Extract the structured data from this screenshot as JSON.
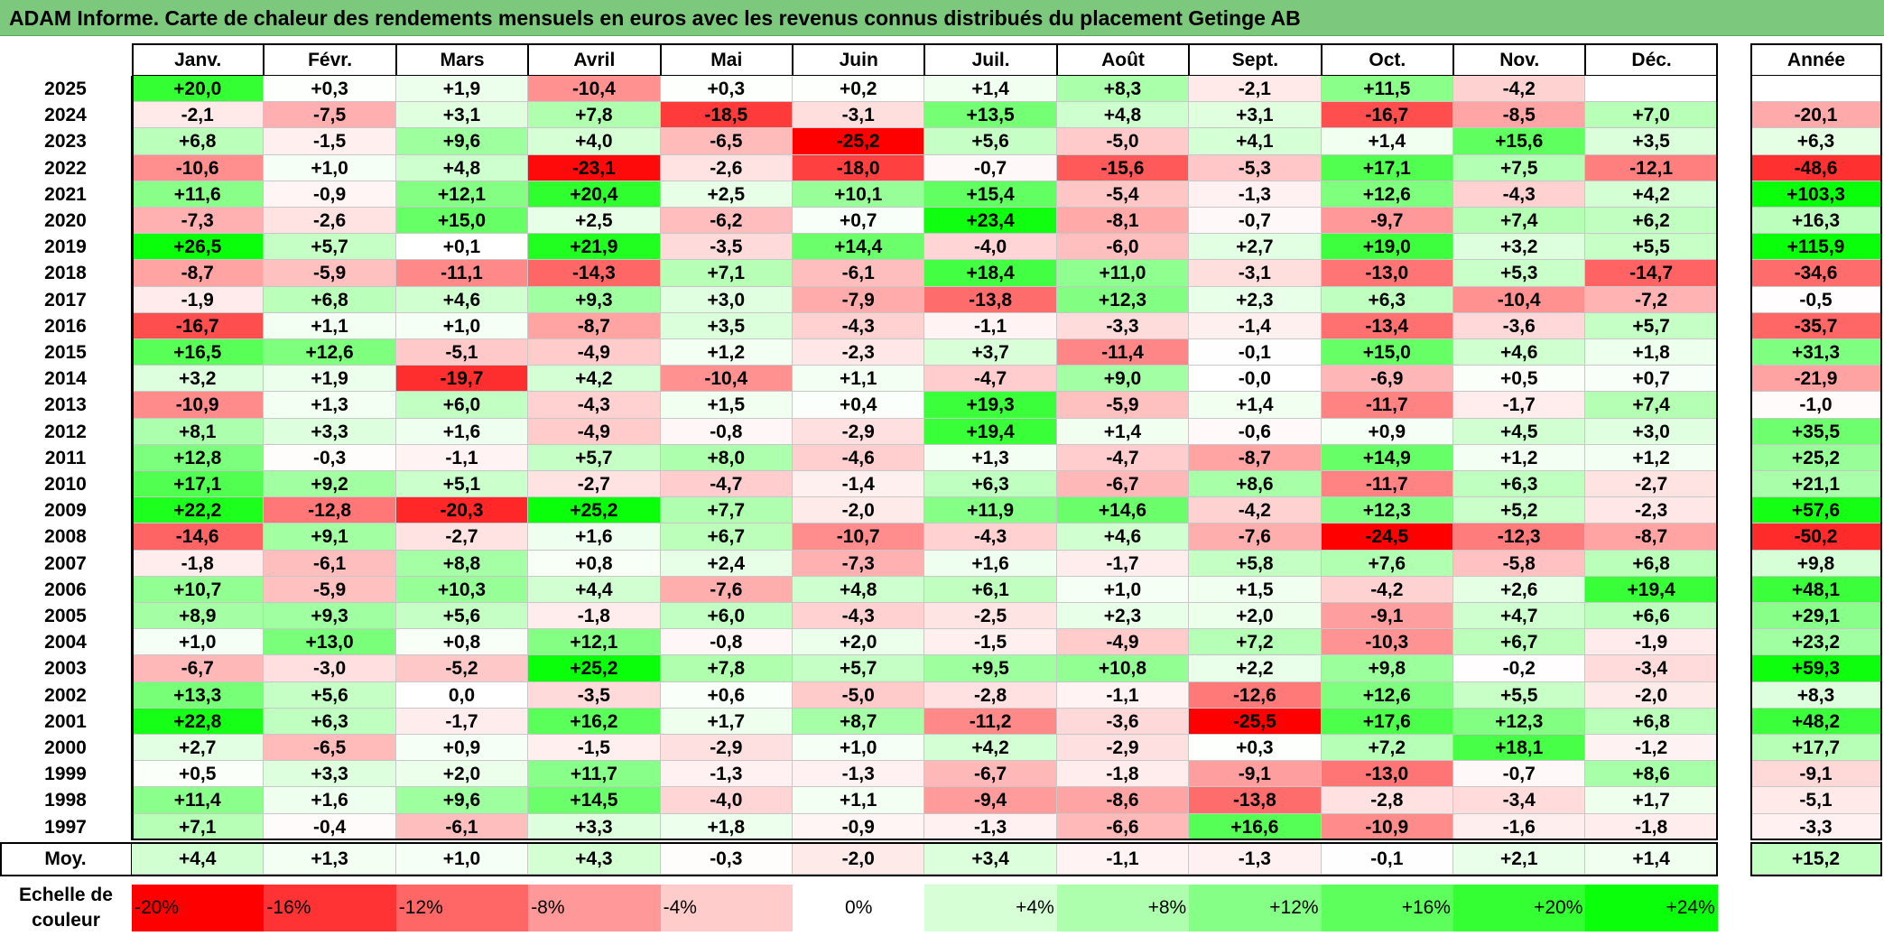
{
  "title": "ADAM Informe. Carte de chaleur des rendements mensuels en euros avec les revenus connus distribués du placement Getinge AB",
  "chart_data": {
    "type": "heatmap",
    "title": "ADAM Informe. Carte de chaleur des rendements mensuels en euros avec les revenus connus distribués du placement Getinge AB",
    "columns": [
      "Janv.",
      "Févr.",
      "Mars",
      "Avril",
      "Mai",
      "Juin",
      "Juil.",
      "Août",
      "Sept.",
      "Oct.",
      "Nov.",
      "Déc."
    ],
    "year_column_label": "Année",
    "rows": [
      {
        "year": "2025",
        "months": [
          "+20,0",
          "+0,3",
          "+1,9",
          "-10,4",
          "+0,3",
          "+0,2",
          "+1,4",
          "+8,3",
          "-2,1",
          "+11,5",
          "-4,2",
          ""
        ],
        "annual": ""
      },
      {
        "year": "2024",
        "months": [
          "-2,1",
          "-7,5",
          "+3,1",
          "+7,8",
          "-18,5",
          "-3,1",
          "+13,5",
          "+4,8",
          "+3,1",
          "-16,7",
          "-8,5",
          "+7,0"
        ],
        "annual": "-20,1"
      },
      {
        "year": "2023",
        "months": [
          "+6,8",
          "-1,5",
          "+9,6",
          "+4,0",
          "-6,5",
          "-25,2",
          "+5,6",
          "-5,0",
          "+4,1",
          "+1,4",
          "+15,6",
          "+3,5"
        ],
        "annual": "+6,3"
      },
      {
        "year": "2022",
        "months": [
          "-10,6",
          "+1,0",
          "+4,8",
          "-23,1",
          "-2,6",
          "-18,0",
          "-0,7",
          "-15,6",
          "-5,3",
          "+17,1",
          "+7,5",
          "-12,1"
        ],
        "annual": "-48,6"
      },
      {
        "year": "2021",
        "months": [
          "+11,6",
          "-0,9",
          "+12,1",
          "+20,4",
          "+2,5",
          "+10,1",
          "+15,4",
          "-5,4",
          "-1,3",
          "+12,6",
          "-4,3",
          "+4,2"
        ],
        "annual": "+103,3"
      },
      {
        "year": "2020",
        "months": [
          "-7,3",
          "-2,6",
          "+15,0",
          "+2,5",
          "-6,2",
          "+0,7",
          "+23,4",
          "-8,1",
          "-0,7",
          "-9,7",
          "+7,4",
          "+6,2"
        ],
        "annual": "+16,3"
      },
      {
        "year": "2019",
        "months": [
          "+26,5",
          "+5,7",
          "+0,1",
          "+21,9",
          "-3,5",
          "+14,4",
          "-4,0",
          "-6,0",
          "+2,7",
          "+19,0",
          "+3,2",
          "+5,5"
        ],
        "annual": "+115,9"
      },
      {
        "year": "2018",
        "months": [
          "-8,7",
          "-5,9",
          "-11,1",
          "-14,3",
          "+7,1",
          "-6,1",
          "+18,4",
          "+11,0",
          "-3,1",
          "-13,0",
          "+5,3",
          "-14,7"
        ],
        "annual": "-34,6"
      },
      {
        "year": "2017",
        "months": [
          "-1,9",
          "+6,8",
          "+4,6",
          "+9,3",
          "+3,0",
          "-7,9",
          "-13,8",
          "+12,3",
          "+2,3",
          "+6,3",
          "-10,4",
          "-7,2"
        ],
        "annual": "-0,5"
      },
      {
        "year": "2016",
        "months": [
          "-16,7",
          "+1,1",
          "+1,0",
          "-8,7",
          "+3,5",
          "-4,3",
          "-1,1",
          "-3,3",
          "-1,4",
          "-13,4",
          "-3,6",
          "+5,7"
        ],
        "annual": "-35,7"
      },
      {
        "year": "2015",
        "months": [
          "+16,5",
          "+12,6",
          "-5,1",
          "-4,9",
          "+1,2",
          "-2,3",
          "+3,7",
          "-11,4",
          "-0,1",
          "+15,0",
          "+4,6",
          "+1,8"
        ],
        "annual": "+31,3"
      },
      {
        "year": "2014",
        "months": [
          "+3,2",
          "+1,9",
          "-19,7",
          "+4,2",
          "-10,4",
          "+1,1",
          "-4,7",
          "+9,0",
          "-0,0",
          "-6,9",
          "+0,5",
          "+0,7"
        ],
        "annual": "-21,9"
      },
      {
        "year": "2013",
        "months": [
          "-10,9",
          "+1,3",
          "+6,0",
          "-4,3",
          "+1,5",
          "+0,4",
          "+19,3",
          "-5,9",
          "+1,4",
          "-11,7",
          "-1,7",
          "+7,4"
        ],
        "annual": "-1,0"
      },
      {
        "year": "2012",
        "months": [
          "+8,1",
          "+3,3",
          "+1,6",
          "-4,9",
          "-0,8",
          "-2,9",
          "+19,4",
          "+1,4",
          "-0,6",
          "+0,9",
          "+4,5",
          "+3,0"
        ],
        "annual": "+35,5"
      },
      {
        "year": "2011",
        "months": [
          "+12,8",
          "-0,3",
          "-1,1",
          "+5,7",
          "+8,0",
          "-4,6",
          "+1,3",
          "-4,7",
          "-8,7",
          "+14,9",
          "+1,2",
          "+1,2"
        ],
        "annual": "+25,2"
      },
      {
        "year": "2010",
        "months": [
          "+17,1",
          "+9,2",
          "+5,1",
          "-2,7",
          "-4,7",
          "-1,4",
          "+6,3",
          "-6,7",
          "+8,6",
          "-11,7",
          "+6,3",
          "-2,7"
        ],
        "annual": "+21,1"
      },
      {
        "year": "2009",
        "months": [
          "+22,2",
          "-12,8",
          "-20,3",
          "+25,2",
          "+7,7",
          "-2,0",
          "+11,9",
          "+14,6",
          "-4,2",
          "+12,3",
          "+5,2",
          "-2,3"
        ],
        "annual": "+57,6"
      },
      {
        "year": "2008",
        "months": [
          "-14,6",
          "+9,1",
          "-2,7",
          "+1,6",
          "+6,7",
          "-10,7",
          "-4,3",
          "+4,6",
          "-7,6",
          "-24,5",
          "-12,3",
          "-8,7"
        ],
        "annual": "-50,2"
      },
      {
        "year": "2007",
        "months": [
          "-1,8",
          "-6,1",
          "+8,8",
          "+0,8",
          "+2,4",
          "-7,3",
          "+1,6",
          "-1,7",
          "+5,8",
          "+7,6",
          "-5,8",
          "+6,8"
        ],
        "annual": "+9,8"
      },
      {
        "year": "2006",
        "months": [
          "+10,7",
          "-5,9",
          "+10,3",
          "+4,4",
          "-7,6",
          "+4,8",
          "+6,1",
          "+1,0",
          "+1,5",
          "-4,2",
          "+2,6",
          "+19,4"
        ],
        "annual": "+48,1"
      },
      {
        "year": "2005",
        "months": [
          "+8,9",
          "+9,3",
          "+5,6",
          "-1,8",
          "+6,0",
          "-4,3",
          "-2,5",
          "+2,3",
          "+2,0",
          "-9,1",
          "+4,7",
          "+6,6"
        ],
        "annual": "+29,1"
      },
      {
        "year": "2004",
        "months": [
          "+1,0",
          "+13,0",
          "+0,8",
          "+12,1",
          "-0,8",
          "+2,0",
          "-1,5",
          "-4,9",
          "+7,2",
          "-10,3",
          "+6,7",
          "-1,9"
        ],
        "annual": "+23,2"
      },
      {
        "year": "2003",
        "months": [
          "-6,7",
          "-3,0",
          "-5,2",
          "+25,2",
          "+7,8",
          "+5,7",
          "+9,5",
          "+10,8",
          "+2,2",
          "+9,8",
          "-0,2",
          "-3,4"
        ],
        "annual": "+59,3"
      },
      {
        "year": "2002",
        "months": [
          "+13,3",
          "+5,6",
          "0,0",
          "-3,5",
          "+0,6",
          "-5,0",
          "-2,8",
          "-1,1",
          "-12,6",
          "+12,6",
          "+5,5",
          "-2,0"
        ],
        "annual": "+8,3"
      },
      {
        "year": "2001",
        "months": [
          "+22,8",
          "+6,3",
          "-1,7",
          "+16,2",
          "+1,7",
          "+8,7",
          "-11,2",
          "-3,6",
          "-25,5",
          "+17,6",
          "+12,3",
          "+6,8"
        ],
        "annual": "+48,2"
      },
      {
        "year": "2000",
        "months": [
          "+2,7",
          "-6,5",
          "+0,9",
          "-1,5",
          "-2,9",
          "+1,0",
          "+4,2",
          "-2,9",
          "+0,3",
          "+7,2",
          "+18,1",
          "-1,2"
        ],
        "annual": "+17,7"
      },
      {
        "year": "1999",
        "months": [
          "+0,5",
          "+3,3",
          "+2,0",
          "+11,7",
          "-1,3",
          "-1,3",
          "-6,7",
          "-1,8",
          "-9,1",
          "-13,0",
          "-0,7",
          "+8,6"
        ],
        "annual": "-9,1"
      },
      {
        "year": "1998",
        "months": [
          "+11,4",
          "+1,6",
          "+9,6",
          "+14,5",
          "-4,0",
          "+1,1",
          "-9,4",
          "-8,6",
          "-13,8",
          "-2,8",
          "-3,4",
          "+1,7"
        ],
        "annual": "-5,1"
      },
      {
        "year": "1997",
        "months": [
          "+7,1",
          "-0,4",
          "-6,1",
          "+3,3",
          "+1,8",
          "-0,9",
          "-1,3",
          "-6,6",
          "+16,6",
          "-10,9",
          "-1,6",
          "-1,8"
        ],
        "annual": "-3,3"
      }
    ],
    "average": {
      "label": "Moy.",
      "months": [
        "+4,4",
        "+1,3",
        "+1,0",
        "+4,3",
        "-0,3",
        "-2,0",
        "+3,4",
        "-1,1",
        "-1,3",
        "-0,1",
        "+2,1",
        "+1,4"
      ],
      "annual": "+15,2"
    },
    "scale": {
      "label": "Echelle de couleur",
      "items": [
        {
          "text": "-20%",
          "color": "#ff0000"
        },
        {
          "text": "-16%",
          "color": "#ff3333"
        },
        {
          "text": "-12%",
          "color": "#ff6666"
        },
        {
          "text": "-8%",
          "color": "#ff9999"
        },
        {
          "text": "-4%",
          "color": "#ffcccc"
        },
        {
          "text": "0%",
          "color": "#ffffff"
        },
        {
          "text": "+4%",
          "color": "#d6ffd6"
        },
        {
          "text": "+8%",
          "color": "#adffad"
        },
        {
          "text": "+12%",
          "color": "#85ff85"
        },
        {
          "text": "+16%",
          "color": "#5cff5c"
        },
        {
          "text": "+20%",
          "color": "#33ff33"
        },
        {
          "text": "+24%",
          "color": "#0aff0a"
        }
      ]
    }
  }
}
